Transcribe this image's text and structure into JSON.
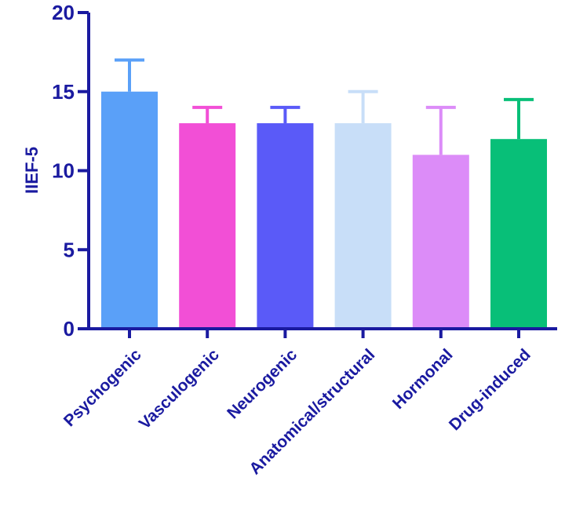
{
  "chart_data": {
    "type": "bar",
    "title": "",
    "xlabel": "",
    "ylabel": "IIEF-5",
    "ylim": [
      0,
      20
    ],
    "yticks": [
      "0",
      "5",
      "10",
      "15",
      "20"
    ],
    "grid": false,
    "legend": "none",
    "axis_color": "#1a1aa0",
    "categories": [
      "Psychogenic",
      "Vasculogenic",
      "Neurogenic",
      "Anatomical/structural",
      "Hormonal",
      "Drug-induced"
    ],
    "values": [
      15,
      13,
      13,
      13,
      11,
      12
    ],
    "error_upper": [
      17,
      14,
      14,
      15,
      14,
      14.5
    ],
    "colors": [
      "#5aa0f8",
      "#f24fd6",
      "#5a5af8",
      "#c8def8",
      "#dc8cf8",
      "#08bf78"
    ]
  }
}
